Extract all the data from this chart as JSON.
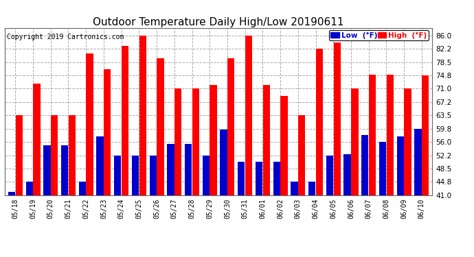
{
  "title": "Outdoor Temperature Daily High/Low 20190611",
  "copyright": "Copyright 2019 Cartronics.com",
  "dates": [
    "05/18",
    "05/19",
    "05/20",
    "05/21",
    "05/22",
    "05/23",
    "05/24",
    "05/25",
    "05/26",
    "05/27",
    "05/28",
    "05/29",
    "05/30",
    "05/31",
    "06/01",
    "06/02",
    "06/03",
    "06/04",
    "06/05",
    "06/06",
    "06/07",
    "06/08",
    "06/09",
    "06/10"
  ],
  "high": [
    63.5,
    72.5,
    63.5,
    63.5,
    81.0,
    76.5,
    83.0,
    86.0,
    79.5,
    71.0,
    71.0,
    72.0,
    79.5,
    86.0,
    72.0,
    69.0,
    63.5,
    82.2,
    84.0,
    71.0,
    75.0,
    75.0,
    71.0,
    74.8
  ],
  "low": [
    42.0,
    44.8,
    55.0,
    55.0,
    44.8,
    57.5,
    52.2,
    52.2,
    52.2,
    55.5,
    55.5,
    52.2,
    59.5,
    50.5,
    50.5,
    50.5,
    44.8,
    44.8,
    52.2,
    52.5,
    58.0,
    56.0,
    57.5,
    59.8
  ],
  "high_color": "#ff0000",
  "low_color": "#0000cc",
  "bg_color": "#ffffff",
  "grid_color": "#aaaaaa",
  "ylim_min": 41.0,
  "ylim_max": 88.0,
  "yticks": [
    41.0,
    44.8,
    48.5,
    52.2,
    56.0,
    59.8,
    63.5,
    67.2,
    71.0,
    74.8,
    78.5,
    82.2,
    86.0
  ],
  "legend_low_label": "Low  (°F)",
  "legend_high_label": "High  (°F)",
  "title_fontsize": 11,
  "copyright_fontsize": 7,
  "bar_width": 0.4,
  "bar_gap": 0.02
}
